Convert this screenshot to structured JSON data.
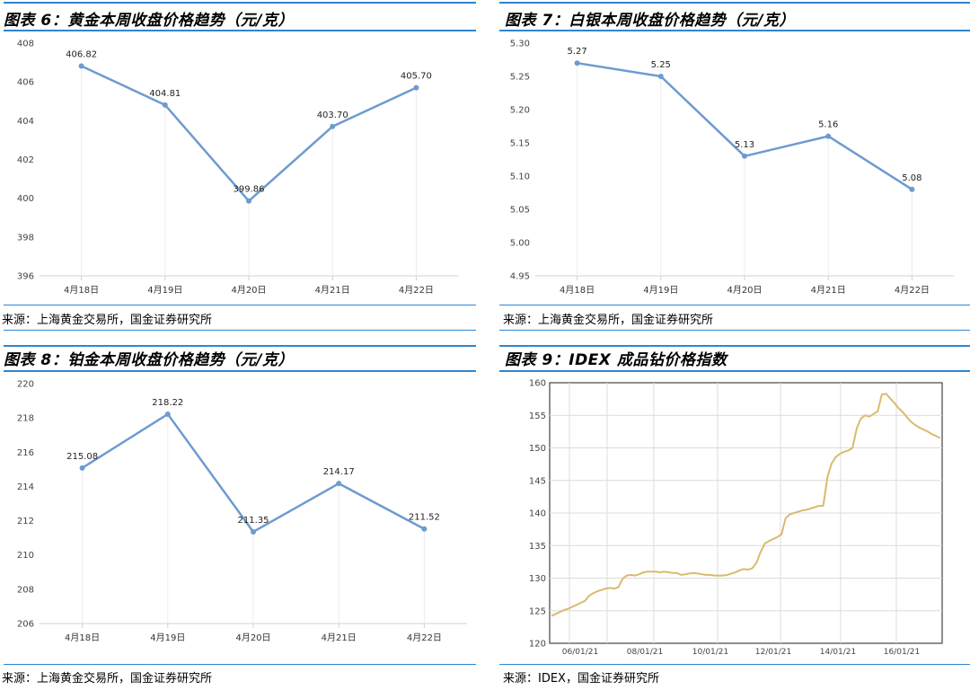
{
  "charts": [
    {
      "title": "图表 6：黄金本周收盘价格趋势（元/克）",
      "source": "来源：上海黄金交易所，国金证券研究所",
      "chart_data": {
        "type": "line",
        "categories": [
          "4月18日",
          "4月19日",
          "4月20日",
          "4月21日",
          "4月22日"
        ],
        "values": [
          406.82,
          404.81,
          399.86,
          403.7,
          405.7
        ],
        "data_labels": [
          "406.82",
          "404.81",
          "399.86",
          "403.70",
          "405.70"
        ],
        "ylim": [
          396,
          408
        ],
        "yticks": [
          "396",
          "398",
          "400",
          "402",
          "404",
          "406",
          "408"
        ],
        "title": "",
        "xlabel": "",
        "ylabel": "",
        "grid": false,
        "legend": "none",
        "color": "#6d9bcf"
      }
    },
    {
      "title": "图表 7：白银本周收盘价格趋势（元/克）",
      "source": "来源：上海黄金交易所，国金证券研究所",
      "chart_data": {
        "type": "line",
        "categories": [
          "4月18日",
          "4月19日",
          "4月20日",
          "4月21日",
          "4月22日"
        ],
        "values": [
          5.27,
          5.25,
          5.13,
          5.16,
          5.08
        ],
        "data_labels": [
          "5.27",
          "5.25",
          "5.13",
          "5.16",
          "5.08"
        ],
        "ylim": [
          4.95,
          5.3
        ],
        "yticks": [
          "4.95",
          "5.00",
          "5.05",
          "5.10",
          "5.15",
          "5.20",
          "5.25",
          "5.30"
        ],
        "title": "",
        "xlabel": "",
        "ylabel": "",
        "grid": false,
        "legend": "none",
        "color": "#6d9bcf"
      }
    },
    {
      "title": "图表 8：铂金本周收盘价格趋势（元/克）",
      "source": "来源：上海黄金交易所，国金证券研究所",
      "chart_data": {
        "type": "line",
        "categories": [
          "4月18日",
          "4月19日",
          "4月20日",
          "4月21日",
          "4月22日"
        ],
        "values": [
          215.08,
          218.22,
          211.35,
          214.17,
          211.52
        ],
        "data_labels": [
          "215.08",
          "218.22",
          "211.35",
          "214.17",
          "211.52"
        ],
        "ylim": [
          206,
          220
        ],
        "yticks": [
          "206",
          "208",
          "210",
          "212",
          "214",
          "216",
          "218",
          "220"
        ],
        "title": "",
        "xlabel": "",
        "ylabel": "",
        "grid": false,
        "legend": "none",
        "color": "#6d9bcf"
      }
    },
    {
      "title": "图表 9：IDEX 成品钻价格指数",
      "source": "来源：IDEX，国金证券研究所",
      "chart_data": {
        "type": "line",
        "x_ticks": [
          "06/01/21",
          "08/01/21",
          "10/01/21",
          "12/01/21",
          "14/01/21",
          "16/01/21"
        ],
        "yticks": [
          "120",
          "125",
          "130",
          "135",
          "140",
          "145",
          "150",
          "155",
          "160"
        ],
        "ylim": [
          120,
          160
        ],
        "title": "",
        "xlabel": "",
        "ylabel": "",
        "grid": true,
        "legend": "none",
        "color": "#d9bb6e",
        "series_approx": [
          124.2,
          124.5,
          124.8,
          125.1,
          125.3,
          125.6,
          125.9,
          126.2,
          126.5,
          127.3,
          127.7,
          128.0,
          128.2,
          128.4,
          128.5,
          128.4,
          128.6,
          129.9,
          130.4,
          130.5,
          130.4,
          130.6,
          130.9,
          131.0,
          131.0,
          131.0,
          130.9,
          131.0,
          130.9,
          130.8,
          130.8,
          130.5,
          130.6,
          130.7,
          130.8,
          130.7,
          130.6,
          130.5,
          130.5,
          130.4,
          130.4,
          130.4,
          130.5,
          130.7,
          130.9,
          131.2,
          131.4,
          131.3,
          131.5,
          132.3,
          134.0,
          135.3,
          135.7,
          136.0,
          136.3,
          136.7,
          139.2,
          139.8,
          140.0,
          140.2,
          140.4,
          140.5,
          140.7,
          140.9,
          141.1,
          141.1,
          145.5,
          147.6,
          148.6,
          149.1,
          149.4,
          149.6,
          150.0,
          153.0,
          154.5,
          155.0,
          154.8,
          155.2,
          155.6,
          158.2,
          158.3,
          157.6,
          156.9,
          156.1,
          155.5,
          154.7,
          154.0,
          153.5,
          153.1,
          152.8,
          152.5,
          152.1,
          151.8,
          151.5
        ]
      }
    }
  ]
}
